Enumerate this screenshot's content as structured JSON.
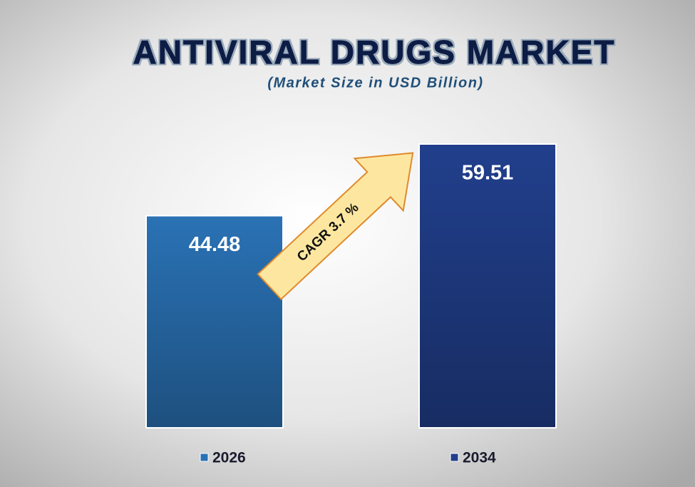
{
  "chart_data": {
    "type": "bar",
    "title": "ANTIVIRAL DRUGS MARKET",
    "subtitle": "(Market Size in USD Billion)",
    "categories": [
      "2026",
      "2034"
    ],
    "values": [
      44.48,
      59.51
    ],
    "colors": [
      "#2a72b5",
      "#213f8c"
    ],
    "annotation": "CAGR 3.7 %"
  }
}
